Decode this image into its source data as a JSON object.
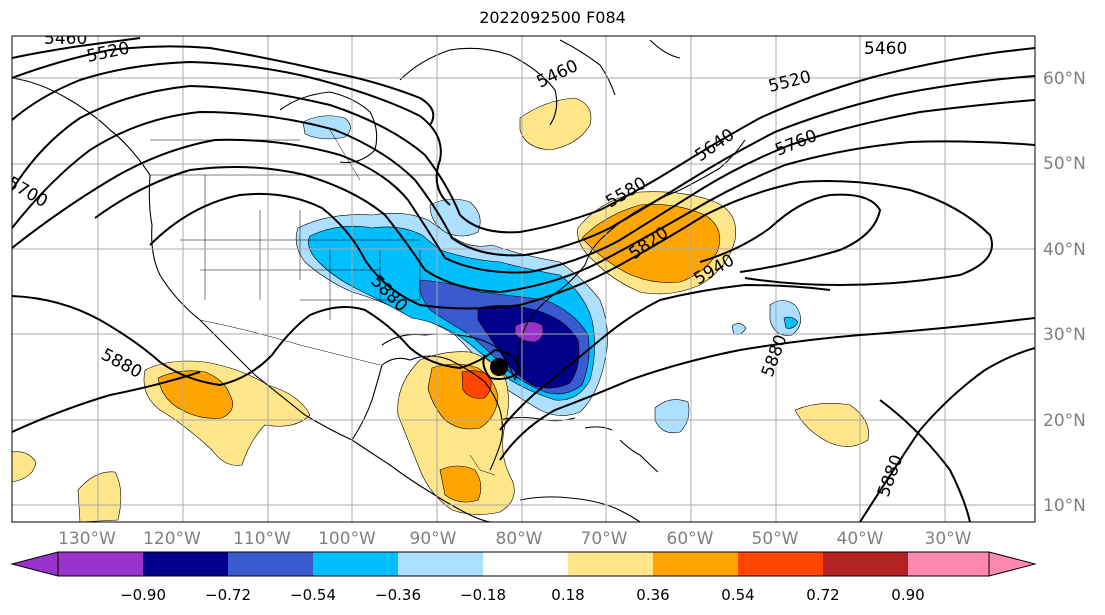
{
  "title": "2022092500 F084",
  "map": {
    "lon_labels": [
      "130°W",
      "120°W",
      "110°W",
      "100°W",
      "90°W",
      "80°W",
      "70°W",
      "60°W",
      "50°W",
      "40°W",
      "30°W"
    ],
    "lat_labels": [
      "60°N",
      "50°N",
      "40°N",
      "30°N",
      "20°N",
      "10°N"
    ],
    "contour_labels": [
      "5460",
      "5520",
      "5460",
      "5460",
      "5520",
      "5640",
      "5760",
      "5700",
      "5580",
      "5820",
      "5880",
      "5940",
      "5880",
      "5880",
      "5880"
    ],
    "hurricane_marker": "tropical-cyclone-center"
  },
  "colorbar": {
    "ticks": [
      "−0.90",
      "−0.72",
      "−0.54",
      "−0.36",
      "−0.18",
      "0.18",
      "0.36",
      "0.54",
      "0.72",
      "0.90"
    ],
    "colors": [
      "#9932CC",
      "#00008B",
      "#3A5BD0",
      "#00BFFF",
      "#ADDFFF",
      "#FFFFFF",
      "#FFE68A",
      "#FFA500",
      "#FF4500",
      "#B22222",
      "#FF88B0"
    ],
    "extend": "both"
  }
}
